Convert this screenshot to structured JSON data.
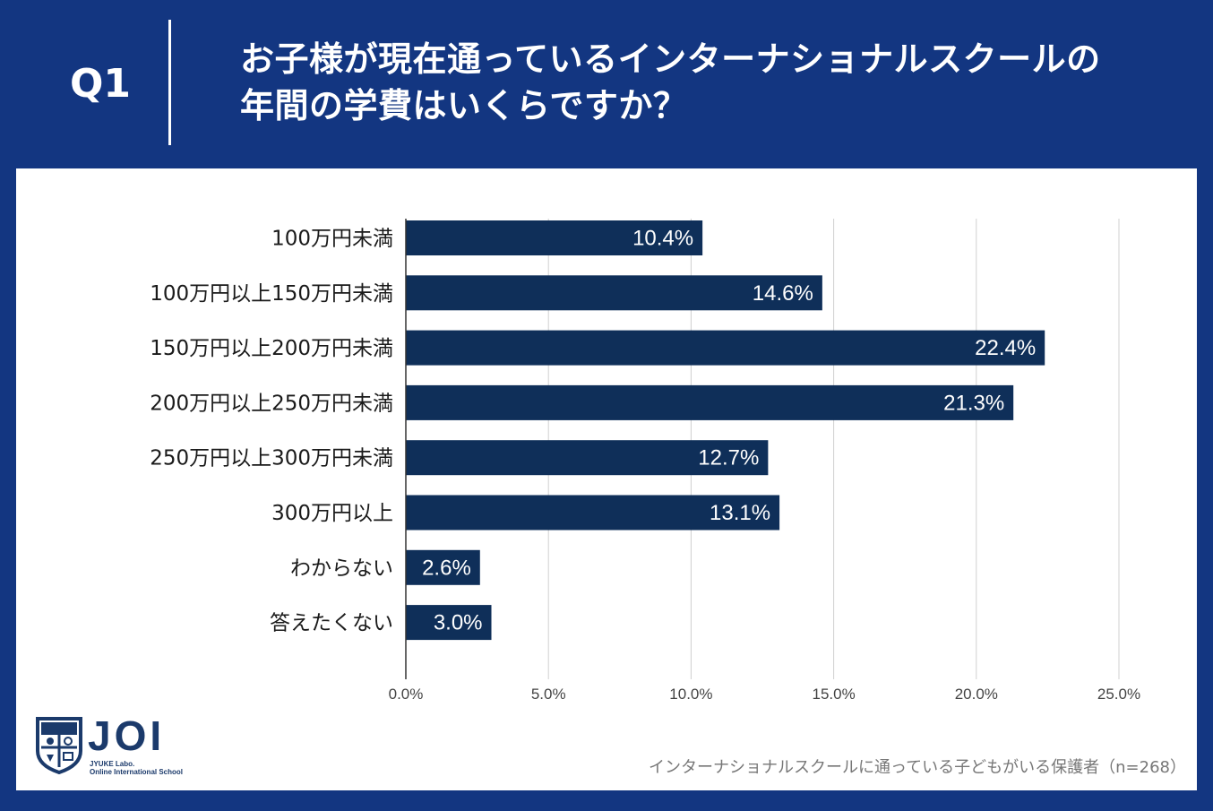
{
  "header": {
    "q_number": "Q1",
    "question_line1": "お子様が現在通っているインターナショナルスクールの",
    "question_line2": "年間の学費はいくらですか？"
  },
  "colors": {
    "background": "#133681",
    "bar": "#0f2f59",
    "grid": "#d0d0d0"
  },
  "chart_data": {
    "type": "bar",
    "orientation": "horizontal",
    "categories": [
      "100万円未満",
      "100万円以上150万円未満",
      "150万円以上200万円未満",
      "200万円以上250万円未満",
      "250万円以上300万円未満",
      "300万円以上",
      "わからない",
      "答えたくない"
    ],
    "values": [
      10.4,
      14.6,
      22.4,
      21.3,
      12.7,
      13.1,
      2.6,
      3.0
    ],
    "value_labels": [
      "10.4%",
      "14.6%",
      "22.4%",
      "21.3%",
      "12.7%",
      "13.1%",
      "2.6%",
      "3.0%"
    ],
    "xlim": [
      0,
      25
    ],
    "xticks": [
      0,
      5,
      10,
      15,
      20,
      25
    ],
    "xtick_labels": [
      "0.0%",
      "5.0%",
      "10.0%",
      "15.0%",
      "20.0%",
      "25.0%"
    ],
    "grid": true
  },
  "logo": {
    "name": "JOI",
    "sub1": "JYUKE Labo.",
    "sub2": "Online International School"
  },
  "footnote": "インターナショナルスクールに通っている子どもがいる保護者（n=268）"
}
